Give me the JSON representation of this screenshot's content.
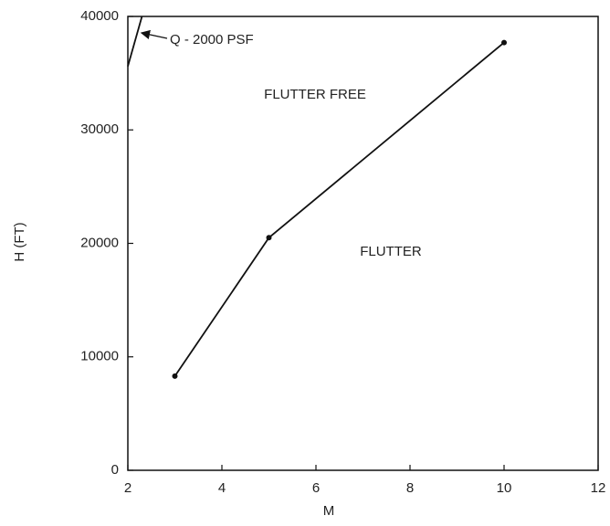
{
  "chart_data": {
    "type": "line",
    "x_label": "M",
    "y_label": "H (FT)",
    "xlim": [
      2,
      12
    ],
    "xticks": [
      2,
      4,
      6,
      8,
      10,
      12
    ],
    "ylim": [
      0,
      40000
    ],
    "yticks": [
      0,
      10000,
      20000,
      30000,
      40000
    ],
    "grid": false,
    "series": [
      {
        "color": "#111111",
        "markers": true,
        "x": [
          3,
          5,
          10
        ],
        "values": [
          8300,
          20500,
          37700
        ]
      },
      {
        "color": "#111111",
        "markers": false,
        "x": [
          2,
          2.3
        ],
        "values": [
          35600,
          40000
        ]
      }
    ],
    "annotations": [
      {
        "text": "Q - 2000 PSF"
      },
      {
        "text": "FLUTTER FREE"
      },
      {
        "text": "FLUTTER"
      }
    ]
  }
}
